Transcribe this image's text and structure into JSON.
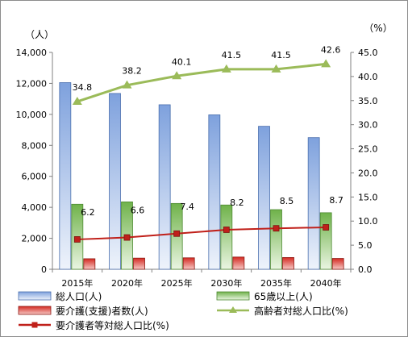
{
  "chart_data": {
    "type": "bar",
    "categories": [
      "2015年",
      "2020年",
      "2025年",
      "2030年",
      "2035年",
      "2040年"
    ],
    "left_axis": {
      "unit_label": "（人）",
      "ylim": [
        0,
        14000
      ],
      "ticks": [
        "0",
        "2,000",
        "4,000",
        "6,000",
        "8,000",
        "10,000",
        "12,000",
        "14,000"
      ]
    },
    "right_axis": {
      "unit_label": "（%）",
      "ylim": [
        0,
        45
      ],
      "ticks": [
        "0.0",
        "5.0",
        "10.0",
        "15.0",
        "20.0",
        "25.0",
        "30.0",
        "35.0",
        "40.0",
        "45.0"
      ]
    },
    "grid": false,
    "legend_position": "bottom",
    "series": [
      {
        "name": "総人口(人)",
        "kind": "bar",
        "axis": "left",
        "color": "#6f93d6",
        "values": [
          12050,
          11350,
          10620,
          9970,
          9230,
          8500
        ]
      },
      {
        "name": "65歳以上(人)",
        "kind": "bar",
        "axis": "left",
        "color": "#7fbf5f",
        "values": [
          4200,
          4350,
          4250,
          4150,
          3850,
          3650
        ]
      },
      {
        "name": "要介護(支援)者数(人)",
        "kind": "bar",
        "axis": "left",
        "color": "#d9302a",
        "values": [
          680,
          720,
          740,
          790,
          760,
          700
        ]
      },
      {
        "name": "高齢者対総人口比(%)",
        "kind": "line",
        "axis": "right",
        "color": "#9bbb59",
        "marker": "triangle",
        "values": [
          34.8,
          38.2,
          40.1,
          41.5,
          41.5,
          42.6
        ],
        "labels": [
          "34.8",
          "38.2",
          "40.1",
          "41.5",
          "41.5",
          "42.6"
        ]
      },
      {
        "name": "要介護者等対総人口比(%)",
        "kind": "line",
        "axis": "right",
        "color": "#c0201a",
        "marker": "square",
        "values": [
          6.2,
          6.6,
          7.4,
          8.2,
          8.5,
          8.7
        ],
        "labels": [
          "6.2",
          "6.6",
          "7.4",
          "8.2",
          "8.5",
          "8.7"
        ]
      }
    ]
  }
}
